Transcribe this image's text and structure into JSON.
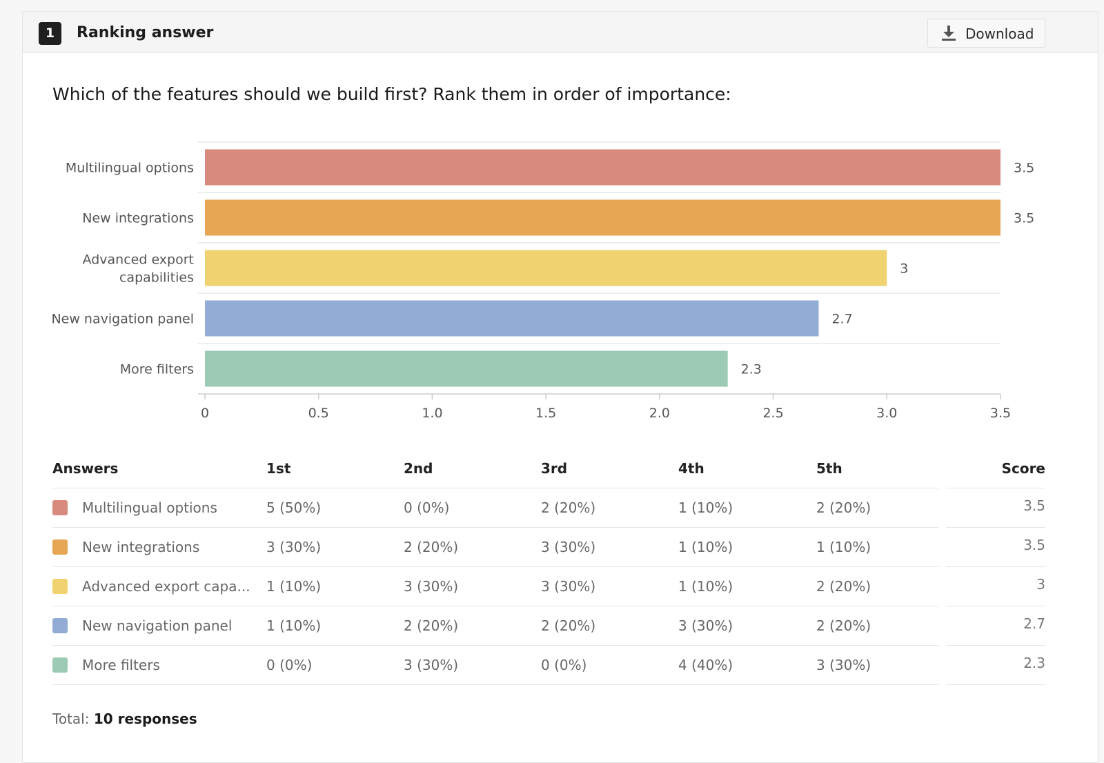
{
  "header": {
    "question_number": "1",
    "question_type": "Ranking answer",
    "download_label": "Download"
  },
  "question_text": "Which of the features should we build first? Rank them in order of importance:",
  "chart_data": {
    "type": "bar",
    "orientation": "horizontal",
    "categories": [
      "Multilingual options",
      "New integrations",
      "Advanced export capabilities",
      "New navigation panel",
      "More filters"
    ],
    "values": [
      3.5,
      3.5,
      3,
      2.7,
      2.3
    ],
    "value_labels": [
      "3.5",
      "3.5",
      "3",
      "2.7",
      "2.3"
    ],
    "colors": [
      "#d98a7e",
      "#e6a653",
      "#f0d271",
      "#93acd6",
      "#9dcab4"
    ],
    "xlim": [
      0,
      3.5
    ],
    "xticks": [
      "0",
      "0.5",
      "1.0",
      "1.5",
      "2.0",
      "2.5",
      "3.0",
      "3.5"
    ],
    "title": "",
    "xlabel": "",
    "ylabel": "",
    "grid": "horizontal separators"
  },
  "table": {
    "headers": [
      "Answers",
      "1st",
      "2nd",
      "3rd",
      "4th",
      "5th",
      "Score"
    ],
    "rows": [
      {
        "answer": "Multilingual options",
        "color": "#d98a7e",
        "cells": [
          "5 (50%)",
          "0 (0%)",
          "2 (20%)",
          "1 (10%)",
          "2 (20%)"
        ],
        "score": "3.5"
      },
      {
        "answer": "New integrations",
        "color": "#e6a653",
        "cells": [
          "3 (30%)",
          "2 (20%)",
          "3 (30%)",
          "1 (10%)",
          "1 (10%)"
        ],
        "score": "3.5"
      },
      {
        "answer": "Advanced export capa...",
        "color": "#f0d271",
        "cells": [
          "1 (10%)",
          "3 (30%)",
          "3 (30%)",
          "1 (10%)",
          "2 (20%)"
        ],
        "score": "3"
      },
      {
        "answer": "New navigation panel",
        "color": "#93acd6",
        "cells": [
          "1 (10%)",
          "2 (20%)",
          "2 (20%)",
          "3 (30%)",
          "2 (20%)"
        ],
        "score": "2.7"
      },
      {
        "answer": "More filters",
        "color": "#9dcab4",
        "cells": [
          "0 (0%)",
          "3 (30%)",
          "0 (0%)",
          "4 (40%)",
          "3 (30%)"
        ],
        "score": "2.3"
      }
    ]
  },
  "footer": {
    "total_label": "Total:",
    "total_value": "10 responses"
  }
}
